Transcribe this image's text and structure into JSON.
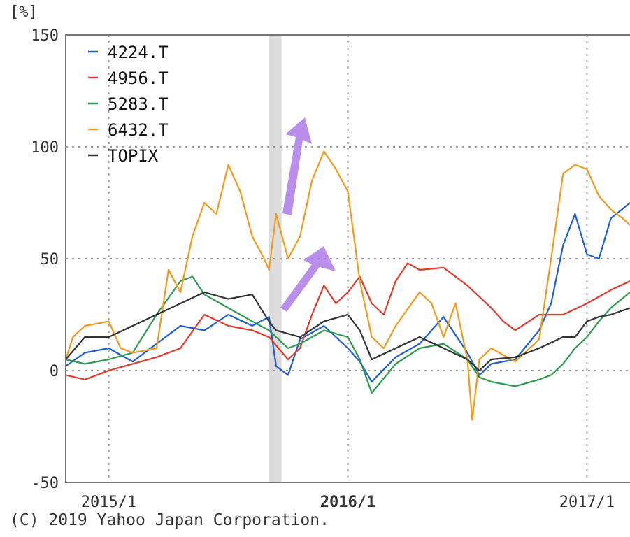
{
  "chart_data": {
    "type": "line",
    "unit_label": "[%]",
    "y_ticks": [
      150,
      100,
      50,
      0,
      -50
    ],
    "ylim": [
      -50,
      150
    ],
    "x_ticks": [
      {
        "label": "2015/1",
        "x": 2015.0,
        "bold": false
      },
      {
        "label": "2016/1",
        "x": 2016.0,
        "bold": true
      },
      {
        "label": "2017/1",
        "x": 2017.0,
        "bold": false
      }
    ],
    "xlim": [
      2014.82,
      2017.18
    ],
    "grid": true,
    "legend_position": "top-left",
    "highlight_band": [
      2015.67,
      2015.71
    ],
    "series": [
      {
        "name": "4224.T",
        "color": "#1f5fd6",
        "x": [
          2014.82,
          2014.9,
          2015.0,
          2015.1,
          2015.2,
          2015.3,
          2015.4,
          2015.5,
          2015.6,
          2015.67,
          2015.7,
          2015.75,
          2015.8,
          2015.9,
          2016.0,
          2016.05,
          2016.1,
          2016.2,
          2016.3,
          2016.4,
          2016.5,
          2016.55,
          2016.6,
          2016.7,
          2016.8,
          2016.85,
          2016.9,
          2016.95,
          2017.0,
          2017.05,
          2017.1,
          2017.18
        ],
        "y": [
          2,
          8,
          10,
          4,
          12,
          20,
          18,
          25,
          20,
          24,
          2,
          -2,
          14,
          20,
          10,
          4,
          -5,
          6,
          12,
          24,
          8,
          -2,
          3,
          5,
          18,
          30,
          56,
          70,
          52,
          50,
          68,
          75
        ]
      },
      {
        "name": "4956.T",
        "color": "#e03c2c",
        "x": [
          2014.82,
          2014.9,
          2015.0,
          2015.1,
          2015.2,
          2015.3,
          2015.4,
          2015.5,
          2015.6,
          2015.67,
          2015.75,
          2015.8,
          2015.85,
          2015.9,
          2015.95,
          2016.0,
          2016.05,
          2016.1,
          2016.15,
          2016.2,
          2016.25,
          2016.3,
          2016.4,
          2016.5,
          2016.6,
          2016.65,
          2016.7,
          2016.8,
          2016.9,
          2017.0,
          2017.1,
          2017.18
        ],
        "y": [
          -2,
          -4,
          0,
          3,
          6,
          10,
          25,
          20,
          18,
          15,
          5,
          10,
          25,
          38,
          30,
          35,
          42,
          30,
          25,
          40,
          48,
          45,
          46,
          38,
          28,
          22,
          18,
          25,
          25,
          30,
          36,
          40
        ]
      },
      {
        "name": "5283.T",
        "color": "#2e9a50",
        "x": [
          2014.82,
          2014.9,
          2015.0,
          2015.1,
          2015.2,
          2015.3,
          2015.35,
          2015.4,
          2015.5,
          2015.6,
          2015.67,
          2015.75,
          2015.8,
          2015.9,
          2016.0,
          2016.05,
          2016.1,
          2016.2,
          2016.3,
          2016.4,
          2016.5,
          2016.55,
          2016.6,
          2016.7,
          2016.8,
          2016.85,
          2016.9,
          2016.95,
          2017.0,
          2017.05,
          2017.1,
          2017.18
        ],
        "y": [
          5,
          3,
          5,
          8,
          25,
          40,
          42,
          34,
          28,
          22,
          18,
          10,
          12,
          18,
          15,
          5,
          -10,
          3,
          10,
          12,
          5,
          -3,
          -5,
          -7,
          -4,
          -2,
          3,
          10,
          15,
          22,
          28,
          35
        ]
      },
      {
        "name": "6432.T",
        "color": "#f19a1c",
        "x": [
          2014.82,
          2014.85,
          2014.9,
          2015.0,
          2015.05,
          2015.1,
          2015.2,
          2015.25,
          2015.3,
          2015.35,
          2015.4,
          2015.45,
          2015.5,
          2015.55,
          2015.6,
          2015.65,
          2015.67,
          2015.7,
          2015.75,
          2015.8,
          2015.85,
          2015.9,
          2015.95,
          2016.0,
          2016.05,
          2016.1,
          2016.15,
          2016.2,
          2016.3,
          2016.35,
          2016.4,
          2016.45,
          2016.5,
          2016.52,
          2016.55,
          2016.6,
          2016.7,
          2016.8,
          2016.85,
          2016.9,
          2016.95,
          2017.0,
          2017.05,
          2017.1,
          2017.15,
          2017.18
        ],
        "y": [
          5,
          15,
          20,
          22,
          10,
          8,
          10,
          45,
          35,
          60,
          75,
          70,
          92,
          80,
          60,
          50,
          45,
          70,
          50,
          60,
          85,
          98,
          90,
          80,
          40,
          15,
          10,
          20,
          35,
          30,
          15,
          30,
          5,
          -22,
          5,
          10,
          4,
          14,
          50,
          88,
          92,
          90,
          78,
          72,
          68,
          65
        ]
      },
      {
        "name": "TOPIX",
        "color": "#333333",
        "x": [
          2014.82,
          2014.9,
          2015.0,
          2015.1,
          2015.2,
          2015.3,
          2015.4,
          2015.5,
          2015.6,
          2015.67,
          2015.7,
          2015.8,
          2015.9,
          2016.0,
          2016.05,
          2016.1,
          2016.2,
          2016.3,
          2016.4,
          2016.5,
          2016.55,
          2016.6,
          2016.7,
          2016.8,
          2016.9,
          2016.95,
          2017.0,
          2017.05,
          2017.1,
          2017.18
        ],
        "y": [
          5,
          15,
          15,
          20,
          25,
          30,
          35,
          32,
          34,
          22,
          18,
          15,
          22,
          25,
          18,
          5,
          10,
          15,
          10,
          5,
          0,
          5,
          6,
          10,
          15,
          15,
          22,
          24,
          25,
          28
        ]
      }
    ]
  },
  "copyright": "(C) 2019 Yahoo Japan Corporation."
}
